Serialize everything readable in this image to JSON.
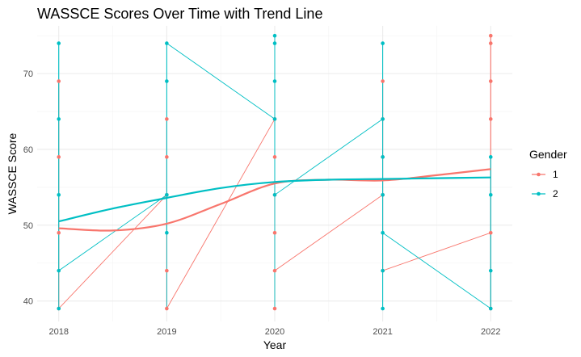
{
  "chart_data": {
    "type": "line",
    "title": "WASSCE Scores Over Time with Trend Line",
    "xlabel": "Year",
    "ylabel": "WASSCE Score",
    "x_ticks": [
      "2018",
      "2019",
      "2020",
      "2021",
      "2022"
    ],
    "y_ticks": [
      40,
      50,
      60,
      70
    ],
    "xlim": [
      2017.8,
      2022.2
    ],
    "ylim": [
      37.3,
      76.3
    ],
    "grid": true,
    "legend": {
      "title": "Gender",
      "position": "right"
    },
    "series": [
      {
        "name": "1",
        "color": "#F8766D",
        "points": [
          {
            "x": 2018,
            "y": 39
          },
          {
            "x": 2018,
            "y": 49
          },
          {
            "x": 2018,
            "y": 59
          },
          {
            "x": 2018,
            "y": 69
          },
          {
            "x": 2019,
            "y": 39
          },
          {
            "x": 2019,
            "y": 44
          },
          {
            "x": 2019,
            "y": 54
          },
          {
            "x": 2019,
            "y": 59
          },
          {
            "x": 2019,
            "y": 64
          },
          {
            "x": 2020,
            "y": 39
          },
          {
            "x": 2020,
            "y": 44
          },
          {
            "x": 2020,
            "y": 49
          },
          {
            "x": 2020,
            "y": 54
          },
          {
            "x": 2020,
            "y": 59
          },
          {
            "x": 2020,
            "y": 64
          },
          {
            "x": 2021,
            "y": 44
          },
          {
            "x": 2021,
            "y": 54
          },
          {
            "x": 2021,
            "y": 59
          },
          {
            "x": 2021,
            "y": 64
          },
          {
            "x": 2021,
            "y": 69
          },
          {
            "x": 2022,
            "y": 39
          },
          {
            "x": 2022,
            "y": 49
          },
          {
            "x": 2022,
            "y": 64
          },
          {
            "x": 2022,
            "y": 69
          },
          {
            "x": 2022,
            "y": 74
          },
          {
            "x": 2022,
            "y": 75
          }
        ],
        "path": [
          {
            "x": 2018,
            "y": 69
          },
          {
            "x": 2018,
            "y": 39
          },
          {
            "x": 2019,
            "y": 54
          },
          {
            "x": 2019,
            "y": 64
          },
          {
            "x": 2019,
            "y": 39
          },
          {
            "x": 2020,
            "y": 64
          },
          {
            "x": 2020,
            "y": 44
          },
          {
            "x": 2021,
            "y": 54
          },
          {
            "x": 2021,
            "y": 69
          },
          {
            "x": 2021,
            "y": 44
          },
          {
            "x": 2022,
            "y": 49
          },
          {
            "x": 2022,
            "y": 75
          },
          {
            "x": 2022,
            "y": 39
          }
        ],
        "trend": [
          {
            "x": 2018,
            "y": 49.6
          },
          {
            "x": 2018.5,
            "y": 49.3
          },
          {
            "x": 2019,
            "y": 50.2
          },
          {
            "x": 2019.5,
            "y": 52.8
          },
          {
            "x": 2020,
            "y": 55.5
          },
          {
            "x": 2020.5,
            "y": 56.0
          },
          {
            "x": 2021,
            "y": 55.9
          },
          {
            "x": 2021.5,
            "y": 56.6
          },
          {
            "x": 2022,
            "y": 57.4
          }
        ]
      },
      {
        "name": "2",
        "color": "#00BFC4",
        "points": [
          {
            "x": 2018,
            "y": 39
          },
          {
            "x": 2018,
            "y": 44
          },
          {
            "x": 2018,
            "y": 54
          },
          {
            "x": 2018,
            "y": 64
          },
          {
            "x": 2018,
            "y": 74
          },
          {
            "x": 2019,
            "y": 49
          },
          {
            "x": 2019,
            "y": 54
          },
          {
            "x": 2019,
            "y": 69
          },
          {
            "x": 2019,
            "y": 74
          },
          {
            "x": 2020,
            "y": 54
          },
          {
            "x": 2020,
            "y": 64
          },
          {
            "x": 2020,
            "y": 69
          },
          {
            "x": 2020,
            "y": 74
          },
          {
            "x": 2020,
            "y": 75
          },
          {
            "x": 2021,
            "y": 39
          },
          {
            "x": 2021,
            "y": 44
          },
          {
            "x": 2021,
            "y": 49
          },
          {
            "x": 2021,
            "y": 54
          },
          {
            "x": 2021,
            "y": 59
          },
          {
            "x": 2021,
            "y": 64
          },
          {
            "x": 2021,
            "y": 74
          },
          {
            "x": 2022,
            "y": 39
          },
          {
            "x": 2022,
            "y": 44
          },
          {
            "x": 2022,
            "y": 54
          },
          {
            "x": 2022,
            "y": 59
          }
        ],
        "path": [
          {
            "x": 2018,
            "y": 74
          },
          {
            "x": 2018,
            "y": 44
          },
          {
            "x": 2019,
            "y": 54
          },
          {
            "x": 2019,
            "y": 39
          },
          {
            "x": 2019,
            "y": 74
          },
          {
            "x": 2020,
            "y": 64
          },
          {
            "x": 2020,
            "y": 54
          },
          {
            "x": 2020,
            "y": 75
          },
          {
            "x": 2020,
            "y": 39
          },
          {
            "x": 2020,
            "y": 54
          },
          {
            "x": 2021,
            "y": 64
          },
          {
            "x": 2021,
            "y": 74
          },
          {
            "x": 2021,
            "y": 39
          },
          {
            "x": 2021,
            "y": 49
          },
          {
            "x": 2022,
            "y": 39
          },
          {
            "x": 2022,
            "y": 59
          }
        ],
        "trend": [
          {
            "x": 2018,
            "y": 50.5
          },
          {
            "x": 2018.5,
            "y": 52.2
          },
          {
            "x": 2019,
            "y": 53.6
          },
          {
            "x": 2019.5,
            "y": 54.9
          },
          {
            "x": 2020,
            "y": 55.7
          },
          {
            "x": 2020.5,
            "y": 56.0
          },
          {
            "x": 2021,
            "y": 56.1
          },
          {
            "x": 2021.5,
            "y": 56.2
          },
          {
            "x": 2022,
            "y": 56.3
          }
        ]
      }
    ]
  }
}
